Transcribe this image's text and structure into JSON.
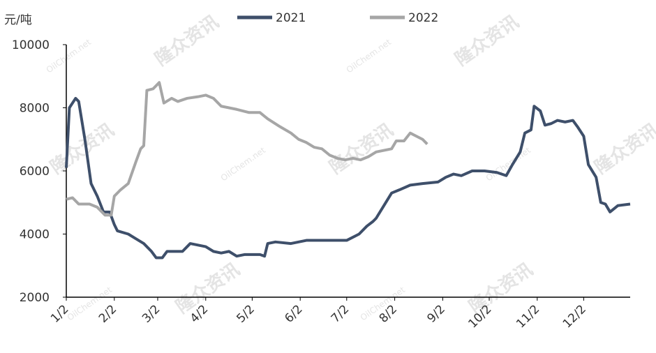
{
  "chart_data": {
    "type": "line",
    "y_label": "元/吨",
    "watermark": "隆众资讯",
    "watermark_sub": "OilChem.net",
    "xlim": [
      0,
      364
    ],
    "xticks": [
      {
        "value": 0,
        "label": "1/2"
      },
      {
        "value": 31,
        "label": "2/2"
      },
      {
        "value": 59,
        "label": "3/2"
      },
      {
        "value": 90,
        "label": "4/2"
      },
      {
        "value": 120,
        "label": "5/2"
      },
      {
        "value": 151,
        "label": "6/2"
      },
      {
        "value": 181,
        "label": "7/2"
      },
      {
        "value": 212,
        "label": "8/2"
      },
      {
        "value": 243,
        "label": "9/2"
      },
      {
        "value": 273,
        "label": "10/2"
      },
      {
        "value": 304,
        "label": "11/2"
      },
      {
        "value": 334,
        "label": "12/2"
      }
    ],
    "ylim": [
      2000,
      10000
    ],
    "yticks": [
      2000,
      4000,
      6000,
      8000,
      10000
    ],
    "grid": false,
    "series": [
      {
        "name": "2021",
        "color": "#3e4f6a",
        "x": [
          0,
          2,
          6,
          8,
          12,
          16,
          20,
          24,
          28,
          31,
          33,
          40,
          45,
          50,
          55,
          58,
          62,
          65,
          75,
          80,
          85,
          90,
          95,
          100,
          105,
          110,
          115,
          125,
          128,
          130,
          135,
          145,
          150,
          155,
          170,
          181,
          189,
          194,
          198,
          200,
          205,
          210,
          215,
          222,
          230,
          240,
          245,
          250,
          255,
          262,
          270,
          278,
          284,
          288,
          293,
          296,
          300,
          302,
          306,
          309,
          313,
          317,
          322,
          327,
          330,
          334,
          337,
          342,
          345,
          348,
          351,
          356,
          364
        ],
        "values": [
          6100,
          8000,
          8300,
          8200,
          7000,
          5600,
          5200,
          4700,
          4700,
          4300,
          4100,
          4000,
          3850,
          3700,
          3450,
          3250,
          3250,
          3450,
          3450,
          3700,
          3650,
          3600,
          3450,
          3400,
          3450,
          3300,
          3350,
          3350,
          3300,
          3700,
          3750,
          3700,
          3750,
          3800,
          3800,
          3800,
          4000,
          4250,
          4400,
          4500,
          4900,
          5300,
          5400,
          5550,
          5600,
          5650,
          5800,
          5900,
          5850,
          6000,
          6000,
          5950,
          5850,
          6200,
          6600,
          7200,
          7300,
          8050,
          7900,
          7450,
          7500,
          7600,
          7550,
          7600,
          7400,
          7100,
          6200,
          5800,
          5000,
          4950,
          4700,
          4900,
          4950
        ]
      },
      {
        "name": "2022",
        "color": "#a6a6a6",
        "x": [
          0,
          4,
          8,
          15,
          20,
          25,
          29,
          31,
          35,
          40,
          45,
          48,
          50,
          52,
          56,
          60,
          63,
          68,
          72,
          78,
          85,
          90,
          95,
          100,
          105,
          110,
          118,
          125,
          130,
          138,
          145,
          150,
          155,
          160,
          165,
          170,
          175,
          180,
          185,
          190,
          195,
          200,
          205,
          210,
          213,
          218,
          222,
          226,
          230,
          233
        ],
        "values": [
          5100,
          5150,
          4950,
          4950,
          4850,
          4600,
          4600,
          5200,
          5400,
          5600,
          6300,
          6700,
          6800,
          8550,
          8600,
          8800,
          8150,
          8300,
          8200,
          8300,
          8350,
          8400,
          8300,
          8050,
          8000,
          7950,
          7850,
          7850,
          7650,
          7400,
          7200,
          7000,
          6900,
          6750,
          6700,
          6500,
          6400,
          6350,
          6400,
          6350,
          6450,
          6600,
          6650,
          6700,
          6950,
          6950,
          7200,
          7100,
          7000,
          6850
        ]
      }
    ]
  }
}
